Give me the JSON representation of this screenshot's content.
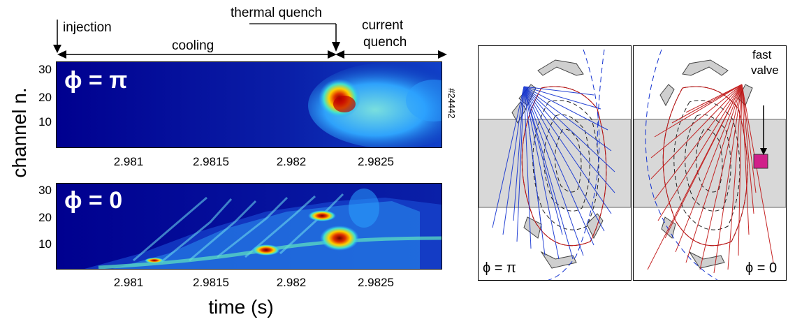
{
  "chart_data": [
    {
      "type": "heatmap",
      "panel": "top",
      "label": "ϕ = π",
      "shot": "#24442",
      "x_ticks": [
        "2.981",
        "2.9815",
        "2.982",
        "2.9825"
      ],
      "y_ticks": [
        "30",
        "20",
        "10"
      ],
      "ylim": [
        1,
        32
      ]
    },
    {
      "type": "heatmap",
      "panel": "bottom",
      "label": "ϕ = 0",
      "x_ticks": [
        "2.981",
        "2.9815",
        "2.982",
        "2.9825"
      ],
      "y_ticks": [
        "30",
        "20",
        "10"
      ],
      "ylim": [
        1,
        32
      ]
    }
  ],
  "ylabel": "channel n.",
  "xlabel": "time (s)",
  "annotations": {
    "injection": "injection",
    "cooling": "cooling",
    "thermal_quench": "thermal quench",
    "current_quench_1": "current",
    "current_quench_2": "quench"
  },
  "tokamak": {
    "left_label": "ϕ = π",
    "right_label": "ϕ = 0",
    "valve_label_1": "fast",
    "valve_label_2": "valve",
    "colors": {
      "left_lines": "#1030d0",
      "right_lines": "#c01010",
      "valve": "#d0208a"
    }
  }
}
